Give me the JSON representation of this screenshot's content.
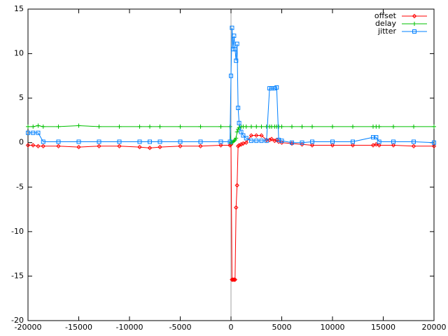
{
  "chart_data": {
    "type": "line",
    "x": [
      -20000,
      -19500,
      -19000,
      -18500,
      -17000,
      -15000,
      -13000,
      -11000,
      -9000,
      -8000,
      -7000,
      -5000,
      -3000,
      -1000,
      -100,
      0,
      100,
      200,
      300,
      400,
      500,
      600,
      700,
      800,
      1000,
      1200,
      1500,
      2000,
      2500,
      3000,
      3500,
      3800,
      4000,
      4300,
      4500,
      4700,
      5000,
      6000,
      7000,
      8000,
      10000,
      12000,
      14000,
      14300,
      14600,
      16000,
      18000,
      20000
    ],
    "series": [
      {
        "name": "offset",
        "color": "#ff0000",
        "marker": "diamond",
        "values": [
          -0.3,
          -0.3,
          -0.4,
          -0.4,
          -0.4,
          -0.5,
          -0.4,
          -0.4,
          -0.5,
          -0.6,
          -0.5,
          -0.4,
          -0.4,
          -0.3,
          -0.3,
          -0.2,
          -15.4,
          -15.4,
          -15.4,
          -15.4,
          -7.3,
          -4.8,
          -0.4,
          -0.3,
          -0.2,
          -0.1,
          0,
          0.8,
          0.8,
          0.8,
          0.3,
          0.3,
          0.4,
          0.2,
          0.3,
          0.1,
          0,
          -0.1,
          -0.2,
          -0.3,
          -0.3,
          -0.3,
          -0.3,
          -0.2,
          -0.3,
          -0.3,
          -0.4,
          -0.4
        ]
      },
      {
        "name": "delay",
        "color": "#00c000",
        "marker": "plus",
        "values": [
          1.8,
          1.8,
          1.9,
          1.8,
          1.8,
          1.9,
          1.8,
          1.8,
          1.8,
          1.8,
          1.8,
          1.8,
          1.8,
          1.8,
          1.8,
          0.0,
          0.0,
          0.1,
          0.2,
          0.3,
          0.5,
          1.2,
          1.5,
          1.7,
          1.8,
          1.8,
          1.8,
          1.8,
          1.8,
          1.8,
          1.8,
          1.8,
          1.8,
          1.8,
          1.8,
          1.8,
          1.8,
          1.8,
          1.8,
          1.8,
          1.8,
          1.8,
          1.8,
          1.8,
          1.8,
          1.8,
          1.8,
          1.8
        ]
      },
      {
        "name": "jitter",
        "color": "#0080ff",
        "marker": "square",
        "values": [
          1.1,
          1.1,
          1.1,
          0.1,
          0.1,
          0.1,
          0.1,
          0.1,
          0.1,
          0.1,
          0.1,
          0.1,
          0.1,
          0.1,
          0.1,
          7.5,
          12.9,
          10.5,
          12.0,
          10.5,
          9.2,
          11.1,
          3.9,
          2.2,
          1.2,
          0.8,
          0.5,
          0.2,
          0.2,
          0.2,
          0.2,
          6.1,
          6.1,
          6.1,
          6.2,
          0.3,
          0.2,
          0.0,
          0.0,
          0.1,
          0.1,
          0.1,
          0.6,
          0.6,
          0.1,
          0.1,
          0.1,
          0.0
        ]
      }
    ],
    "xlim": [
      -20000,
      20000
    ],
    "xticks": [
      -20000,
      -15000,
      -10000,
      -5000,
      0,
      5000,
      10000,
      15000,
      20000
    ],
    "ylim": [
      -20,
      15
    ],
    "yticks": [
      -20,
      -15,
      -10,
      -5,
      0,
      5,
      10,
      15
    ],
    "legend": "top-right",
    "zero_line": true
  }
}
